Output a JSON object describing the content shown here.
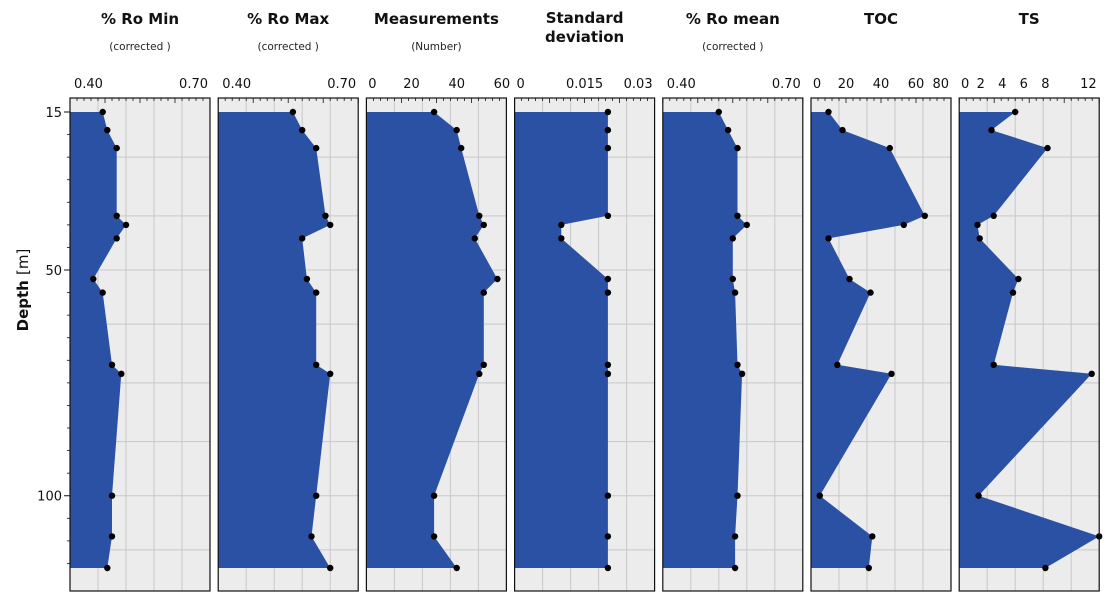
{
  "chart_data": {
    "type": "area",
    "y_axis": {
      "label": "Depth",
      "unit": "[m]",
      "range": [
        15,
        118
      ],
      "ticks": [
        15,
        50,
        100
      ],
      "inverted": true
    },
    "depth": [
      15,
      19,
      23,
      38,
      40,
      43,
      52,
      55,
      71,
      73,
      100,
      109,
      116
    ],
    "panels": [
      {
        "title_lines": [
          "% Ro Min"
        ],
        "subtitle": "(corrected )",
        "xlim": [
          0.4,
          0.7
        ],
        "ticks": [
          "0.40",
          "0.70"
        ],
        "tick_values": [
          0.4,
          0.7
        ],
        "values": [
          0.47,
          0.48,
          0.5,
          0.5,
          0.52,
          0.5,
          0.45,
          0.47,
          0.49,
          0.51,
          0.49,
          0.49,
          0.48
        ]
      },
      {
        "title_lines": [
          "% Ro Max"
        ],
        "subtitle": "(corrected )",
        "xlim": [
          0.4,
          0.7
        ],
        "ticks": [
          "0.40",
          "0.70"
        ],
        "tick_values": [
          0.4,
          0.7
        ],
        "values": [
          0.56,
          0.58,
          0.61,
          0.63,
          0.64,
          0.58,
          0.59,
          0.61,
          0.61,
          0.64,
          0.61,
          0.6,
          0.64
        ]
      },
      {
        "title_lines": [
          "Measurements"
        ],
        "subtitle": "(Number)",
        "xlim": [
          0,
          62
        ],
        "ticks": [
          "0",
          "20",
          "40",
          "60"
        ],
        "tick_values": [
          0,
          20,
          40,
          60
        ],
        "values": [
          30,
          40,
          42,
          50,
          52,
          48,
          58,
          52,
          52,
          50,
          30,
          30,
          40
        ]
      },
      {
        "title_lines": [
          "Standard",
          "deviation"
        ],
        "subtitle": "",
        "xlim": [
          0,
          0.03
        ],
        "ticks": [
          "0",
          "0.015",
          "0.03"
        ],
        "tick_values": [
          0,
          0.015,
          0.03
        ],
        "values": [
          0.02,
          0.02,
          0.02,
          0.02,
          0.01,
          0.01,
          0.02,
          0.02,
          0.02,
          0.02,
          0.02,
          0.02,
          0.02
        ]
      },
      {
        "title_lines": [
          "% Ro mean"
        ],
        "subtitle": "(corrected )",
        "xlim": [
          0.4,
          0.7
        ],
        "ticks": [
          "0.40",
          "0.70"
        ],
        "tick_values": [
          0.4,
          0.7
        ],
        "values": [
          0.52,
          0.54,
          0.56,
          0.56,
          0.58,
          0.55,
          0.55,
          0.555,
          0.56,
          0.57,
          0.56,
          0.555,
          0.555
        ]
      },
      {
        "title_lines": [
          "TOC"
        ],
        "subtitle": "",
        "xlim": [
          0,
          80
        ],
        "ticks": [
          "0",
          "20",
          "40",
          "60",
          "80"
        ],
        "tick_values": [
          0,
          20,
          40,
          60,
          80
        ],
        "values": [
          10,
          18,
          45,
          65,
          53,
          10,
          22,
          34,
          15,
          46,
          5,
          35,
          33
        ]
      },
      {
        "title_lines": [
          "TS"
        ],
        "subtitle": "",
        "xlim": [
          0,
          13
        ],
        "ticks": [
          "0",
          "2",
          "4",
          "6",
          "8",
          "12"
        ],
        "tick_values": [
          0,
          2,
          4,
          6,
          8,
          12
        ],
        "values": [
          5.2,
          3.0,
          8.2,
          3.2,
          1.7,
          1.9,
          5.5,
          5.0,
          3.2,
          12.3,
          1.8,
          13.0,
          8.0
        ]
      }
    ],
    "colors": {
      "fill": "#2a51a3",
      "grid": "#c8c8c8",
      "background": "#ececec",
      "marker": "#000000"
    },
    "grid": true
  }
}
